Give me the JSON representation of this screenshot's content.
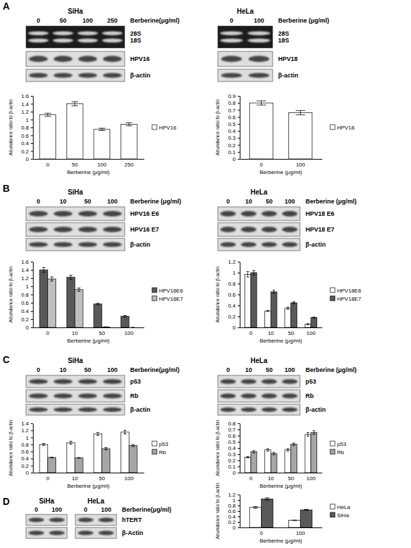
{
  "panels": [
    {
      "label": "A"
    },
    {
      "label": "B"
    },
    {
      "label": "C"
    },
    {
      "label": "D"
    }
  ],
  "blots": [
    {
      "groups": [
        {
          "cell_line": "SiHa",
          "doses": [
            "0",
            "50",
            "100",
            "250"
          ]
        }
      ],
      "dose_label": "Berberine(μg/ml)",
      "rows": [
        [
          "28S",
          "18S"
        ],
        [
          "HPV16"
        ],
        [
          "β-actin"
        ]
      ]
    },
    {
      "groups": [
        {
          "cell_line": "HeLa",
          "doses": [
            "0",
            "100"
          ]
        }
      ],
      "dose_label": "Berberine (μg/ml)",
      "rows": [
        [
          "28S",
          "18S"
        ],
        [
          "HPV18"
        ],
        [
          "β-actin"
        ]
      ]
    },
    {
      "groups": [
        {
          "cell_line": "SiHa",
          "doses": [
            "0",
            "10",
            "50",
            "100"
          ]
        }
      ],
      "dose_label": "Berberine (μg/ml)",
      "rows": [
        [
          "HPV16 E6"
        ],
        [
          "HPV16 E7"
        ],
        [
          "β-actin"
        ]
      ]
    },
    {
      "groups": [
        {
          "cell_line": "HeLa",
          "doses": [
            "0",
            "10",
            "50",
            "100"
          ]
        }
      ],
      "dose_label": "Berberine (μg/ml)",
      "rows": [
        [
          "HPV18 E6"
        ],
        [
          "HPV18 E7"
        ],
        [
          "β-actin"
        ]
      ]
    },
    {
      "groups": [
        {
          "cell_line": "SiHa",
          "doses": [
            "0",
            "10",
            "50",
            "100"
          ]
        }
      ],
      "dose_label": "Berberine(μg/ml)",
      "rows": [
        [
          "p53"
        ],
        [
          "Rb"
        ],
        [
          "β-actin"
        ]
      ]
    },
    {
      "groups": [
        {
          "cell_line": "HeLa",
          "doses": [
            "0",
            "10",
            "50",
            "100"
          ]
        }
      ],
      "dose_label": "Berberine (μg/ml)",
      "rows": [
        [
          "p53"
        ],
        [
          "Rb"
        ],
        [
          "β-actin"
        ]
      ]
    },
    {
      "groups": [
        {
          "cell_line": "SiHa",
          "doses": [
            "0",
            "100"
          ]
        },
        {
          "cell_line": "HeLa",
          "doses": [
            "0",
            "100"
          ]
        }
      ],
      "dose_label": "Berberine(μg/ml)",
      "rows": [
        [
          "hTERT"
        ],
        [
          "β-Actin"
        ]
      ]
    }
  ],
  "chart_data": [
    {
      "type": "bar",
      "categories": [
        "0",
        "50",
        "100",
        "250"
      ],
      "series": [
        {
          "name": "HPV16",
          "color": "#ffffff",
          "values": [
            1.12,
            1.4,
            0.75,
            0.88
          ],
          "errors": [
            0.04,
            0.05,
            0.03,
            0.04
          ]
        }
      ],
      "x_label": "Berberine (μg/ml)",
      "y_label": "Abundance ratio to β-actin",
      "ylim": [
        0,
        1.6
      ],
      "yticks": [
        0,
        0.2,
        0.4,
        0.6,
        0.8,
        1,
        1.2,
        1.4,
        1.6
      ],
      "legend": "right",
      "grid": false
    },
    {
      "type": "bar",
      "categories": [
        "0",
        "100"
      ],
      "series": [
        {
          "name": "HPV18",
          "color": "#ffffff",
          "values": [
            0.8,
            0.66
          ],
          "errors": [
            0.03,
            0.03
          ]
        }
      ],
      "x_label": "Berberine (μg/ml)",
      "y_label": "Abundance ratio to β-actin",
      "ylim": [
        0,
        0.9
      ],
      "yticks": [
        0,
        0.1,
        0.2,
        0.3,
        0.4,
        0.5,
        0.6,
        0.7,
        0.8,
        0.9
      ],
      "legend": "right",
      "grid": false
    },
    {
      "type": "bar",
      "categories": [
        "0",
        "10",
        "50",
        "100"
      ],
      "series": [
        {
          "name": "HPV16E6",
          "color": "#595959",
          "values": [
            1.4,
            1.22,
            0.57,
            0.27
          ],
          "errors": [
            0.06,
            0.05,
            0.02,
            0.02
          ]
        },
        {
          "name": "HPV16E7",
          "color": "#bfbfbf",
          "values": [
            1.18,
            0.92,
            0.01,
            0
          ],
          "errors": [
            0.05,
            0.04,
            0.005,
            0
          ]
        }
      ],
      "x_label": "Berberine (μg/ml)",
      "y_label": "Abundance ratio to β-actin",
      "ylim": [
        0,
        1.6
      ],
      "yticks": [
        0,
        0.2,
        0.4,
        0.6,
        0.8,
        1,
        1.2,
        1.4,
        1.6
      ],
      "legend": "right",
      "grid": false
    },
    {
      "type": "bar",
      "categories": [
        "0",
        "10",
        "50",
        "100"
      ],
      "series": [
        {
          "name": "HPV18E6",
          "color": "#ffffff",
          "values": [
            0.97,
            0.3,
            0.35,
            0.06
          ],
          "errors": [
            0.05,
            0.01,
            0.02,
            0.01
          ]
        },
        {
          "name": "HPV18E7",
          "color": "#595959",
          "values": [
            1.0,
            0.65,
            0.45,
            0.18
          ],
          "errors": [
            0.04,
            0.03,
            0.02,
            0.01
          ]
        }
      ],
      "x_label": "Berberine (μg/ml)",
      "y_label": "Abundance ratio to β-actin",
      "ylim": [
        0,
        1.2
      ],
      "yticks": [
        0,
        0.2,
        0.4,
        0.6,
        0.8,
        1,
        1.2
      ],
      "legend": "right",
      "grid": false
    },
    {
      "type": "bar",
      "categories": [
        "0",
        "10",
        "50",
        "100"
      ],
      "series": [
        {
          "name": "p53",
          "color": "#ffffff",
          "values": [
            0.8,
            0.85,
            1.1,
            1.15
          ],
          "errors": [
            0.03,
            0.04,
            0.04,
            0.05
          ]
        },
        {
          "name": "Rb",
          "color": "#a6a6a6",
          "values": [
            0.43,
            0.42,
            0.68,
            0.77
          ],
          "errors": [
            0.01,
            0.01,
            0.03,
            0.03
          ]
        }
      ],
      "x_label": "Berberine (μg/ml)",
      "y_label": "Abundance ratio to β-actin",
      "ylim": [
        0,
        1.4
      ],
      "yticks": [
        0,
        0.2,
        0.4,
        0.6,
        0.8,
        1,
        1.2,
        1.4
      ],
      "legend": "right",
      "grid": false
    },
    {
      "type": "bar",
      "categories": [
        "0",
        "10",
        "50",
        "100"
      ],
      "series": [
        {
          "name": "p53",
          "color": "#ffffff",
          "values": [
            0.25,
            0.37,
            0.37,
            0.62
          ],
          "errors": [
            0.01,
            0.02,
            0.02,
            0.03
          ]
        },
        {
          "name": "Rb",
          "color": "#a6a6a6",
          "values": [
            0.34,
            0.31,
            0.46,
            0.65
          ],
          "errors": [
            0.02,
            0.02,
            0.02,
            0.03
          ]
        }
      ],
      "x_label": "Berberine (μg/ml)",
      "y_label": "Abundance ratio to β-actin",
      "ylim": [
        0,
        0.8
      ],
      "yticks": [
        0,
        0.1,
        0.2,
        0.3,
        0.4,
        0.5,
        0.6,
        0.7,
        0.8
      ],
      "legend": "right",
      "grid": false
    },
    {
      "type": "bar",
      "categories": [
        "0",
        "100"
      ],
      "series": [
        {
          "name": "HeLa",
          "color": "#ffffff",
          "values": [
            0.73,
            0.26
          ],
          "errors": [
            0.03,
            0.01
          ]
        },
        {
          "name": "SiHa",
          "color": "#595959",
          "values": [
            1.04,
            0.64
          ],
          "errors": [
            0.04,
            0.02
          ]
        }
      ],
      "x_label": "Berberine (μg/ml)",
      "y_label": "Abundance ratio to β-actin",
      "ylim": [
        0,
        1.2
      ],
      "yticks": [
        0,
        0.2,
        0.4,
        0.6,
        0.8,
        1,
        1.2
      ],
      "legend": "right",
      "grid": false
    }
  ]
}
